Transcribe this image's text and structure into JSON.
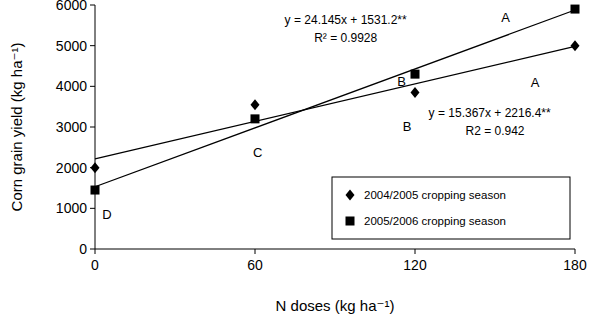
{
  "chart_data": {
    "type": "scatter",
    "x_label": "N doses (kg ha⁻¹)",
    "y_label": "Corn grain yield  (kg ha⁻¹)",
    "xlim": [
      0,
      180
    ],
    "xticks": [
      0,
      60,
      120,
      180
    ],
    "ylim": [
      0,
      6000
    ],
    "yticks": [
      0,
      1000,
      2000,
      3000,
      4000,
      5000,
      6000
    ],
    "grid": false,
    "legend": "lower right",
    "series": [
      {
        "name": "2004/2005 cropping season",
        "color": "#000000",
        "marker": "diamond",
        "x": [
          0,
          60,
          120,
          180
        ],
        "values": [
          2000,
          3550,
          3850,
          5000
        ],
        "trendline": {
          "x": [
            0,
            180
          ],
          "values": [
            2216,
            4982
          ]
        }
      },
      {
        "name": "2005/2006 cropping season",
        "color": "#000000",
        "marker": "square",
        "x": [
          0,
          60,
          120,
          180
        ],
        "values": [
          1450,
          3200,
          4300,
          5900
        ],
        "trendline": {
          "x": [
            0,
            180
          ],
          "values": [
            1531,
            5877
          ]
        }
      }
    ],
    "annotations": [
      {
        "text": "y = 24.145x + 1531.2**",
        "x": 94,
        "y": 5630
      },
      {
        "text": "R² = 0.9928",
        "x": 94,
        "y": 5190
      },
      {
        "text": "y = 15.367x + 2216.4**",
        "x": 148,
        "y": 3340
      },
      {
        "text": "R2 = 0.942",
        "x": 150,
        "y": 2900
      },
      {
        "text": "A",
        "x": 154,
        "y": 5680
      },
      {
        "text": "A",
        "x": 165,
        "y": 4080
      },
      {
        "text": "B",
        "x": 115,
        "y": 4110
      },
      {
        "text": "B",
        "x": 117,
        "y": 3000
      },
      {
        "text": "C",
        "x": 61,
        "y": 2360
      },
      {
        "text": "D",
        "x": 4.5,
        "y": 840
      }
    ]
  }
}
